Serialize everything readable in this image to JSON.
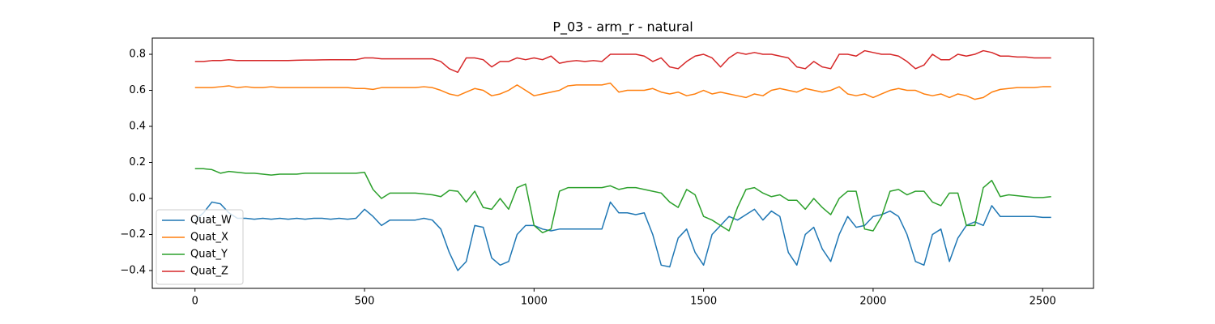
{
  "chart_data": {
    "type": "line",
    "title": "P_03 - arm_r - natural",
    "x": [
      0,
      25,
      50,
      75,
      100,
      125,
      150,
      175,
      200,
      225,
      250,
      275,
      300,
      325,
      350,
      375,
      400,
      425,
      450,
      475,
      500,
      525,
      550,
      575,
      600,
      625,
      650,
      675,
      700,
      725,
      750,
      775,
      800,
      825,
      850,
      875,
      900,
      925,
      950,
      975,
      1000,
      1025,
      1050,
      1075,
      1100,
      1125,
      1150,
      1175,
      1200,
      1225,
      1250,
      1275,
      1300,
      1325,
      1350,
      1375,
      1400,
      1425,
      1450,
      1475,
      1500,
      1525,
      1550,
      1575,
      1600,
      1625,
      1650,
      1675,
      1700,
      1725,
      1750,
      1775,
      1800,
      1825,
      1850,
      1875,
      1900,
      1925,
      1950,
      1975,
      2000,
      2025,
      2050,
      2075,
      2100,
      2125,
      2150,
      2175,
      2200,
      2225,
      2250,
      2275,
      2300,
      2325,
      2350,
      2375,
      2400,
      2425,
      2450,
      2475,
      2500,
      2525
    ],
    "series": [
      {
        "name": "Quat_W",
        "color": "#1f77b4",
        "values": [
          -0.12,
          -0.08,
          -0.02,
          -0.03,
          -0.08,
          -0.11,
          -0.11,
          -0.115,
          -0.11,
          -0.115,
          -0.11,
          -0.115,
          -0.11,
          -0.115,
          -0.11,
          -0.11,
          -0.115,
          -0.11,
          -0.115,
          -0.11,
          -0.06,
          -0.1,
          -0.15,
          -0.12,
          -0.12,
          -0.12,
          -0.12,
          -0.11,
          -0.12,
          -0.17,
          -0.3,
          -0.4,
          -0.35,
          -0.15,
          -0.16,
          -0.33,
          -0.37,
          -0.35,
          -0.2,
          -0.15,
          -0.15,
          -0.17,
          -0.18,
          -0.17,
          -0.17,
          -0.17,
          -0.17,
          -0.17,
          -0.17,
          -0.02,
          -0.08,
          -0.08,
          -0.09,
          -0.08,
          -0.2,
          -0.37,
          -0.38,
          -0.22,
          -0.17,
          -0.3,
          -0.37,
          -0.2,
          -0.15,
          -0.1,
          -0.12,
          -0.09,
          -0.06,
          -0.12,
          -0.07,
          -0.1,
          -0.3,
          -0.37,
          -0.2,
          -0.16,
          -0.28,
          -0.35,
          -0.2,
          -0.1,
          -0.16,
          -0.15,
          -0.1,
          -0.09,
          -0.07,
          -0.1,
          -0.2,
          -0.35,
          -0.37,
          -0.2,
          -0.17,
          -0.35,
          -0.22,
          -0.15,
          -0.13,
          -0.15,
          -0.04,
          -0.1,
          -0.1,
          -0.1,
          -0.1,
          -0.1,
          -0.105,
          -0.105
        ]
      },
      {
        "name": "Quat_X",
        "color": "#ff7f0e",
        "values": [
          0.615,
          0.615,
          0.615,
          0.62,
          0.625,
          0.615,
          0.62,
          0.615,
          0.615,
          0.62,
          0.615,
          0.615,
          0.615,
          0.615,
          0.615,
          0.615,
          0.615,
          0.615,
          0.615,
          0.61,
          0.61,
          0.605,
          0.615,
          0.615,
          0.615,
          0.615,
          0.615,
          0.62,
          0.615,
          0.6,
          0.58,
          0.57,
          0.59,
          0.61,
          0.6,
          0.57,
          0.58,
          0.6,
          0.63,
          0.6,
          0.57,
          0.58,
          0.59,
          0.6,
          0.625,
          0.63,
          0.63,
          0.63,
          0.63,
          0.64,
          0.59,
          0.6,
          0.6,
          0.6,
          0.61,
          0.59,
          0.58,
          0.59,
          0.57,
          0.58,
          0.6,
          0.58,
          0.59,
          0.58,
          0.57,
          0.56,
          0.58,
          0.57,
          0.6,
          0.61,
          0.6,
          0.59,
          0.61,
          0.6,
          0.59,
          0.6,
          0.62,
          0.58,
          0.57,
          0.58,
          0.56,
          0.58,
          0.6,
          0.61,
          0.6,
          0.6,
          0.58,
          0.57,
          0.58,
          0.56,
          0.58,
          0.57,
          0.55,
          0.56,
          0.59,
          0.605,
          0.61,
          0.615,
          0.615,
          0.615,
          0.62,
          0.62
        ]
      },
      {
        "name": "Quat_Y",
        "color": "#2ca02c",
        "values": [
          0.165,
          0.165,
          0.16,
          0.14,
          0.15,
          0.145,
          0.14,
          0.14,
          0.135,
          0.13,
          0.135,
          0.135,
          0.135,
          0.14,
          0.14,
          0.14,
          0.14,
          0.14,
          0.14,
          0.14,
          0.145,
          0.05,
          0.0,
          0.03,
          0.03,
          0.03,
          0.03,
          0.025,
          0.02,
          0.01,
          0.045,
          0.04,
          -0.02,
          0.04,
          -0.05,
          -0.06,
          0.0,
          -0.06,
          0.06,
          0.08,
          -0.15,
          -0.19,
          -0.17,
          0.04,
          0.06,
          0.06,
          0.06,
          0.06,
          0.06,
          0.07,
          0.05,
          0.06,
          0.06,
          0.05,
          0.04,
          0.03,
          -0.02,
          -0.05,
          0.05,
          0.02,
          -0.1,
          -0.12,
          -0.15,
          -0.18,
          -0.05,
          0.05,
          0.06,
          0.03,
          0.01,
          0.02,
          -0.01,
          -0.01,
          -0.06,
          0.0,
          -0.05,
          -0.09,
          0.0,
          0.04,
          0.04,
          -0.17,
          -0.18,
          -0.1,
          0.04,
          0.05,
          0.02,
          0.04,
          0.04,
          -0.02,
          -0.04,
          0.03,
          0.03,
          -0.15,
          -0.15,
          0.06,
          0.1,
          0.01,
          0.02,
          0.015,
          0.01,
          0.005,
          0.005,
          0.01
        ]
      },
      {
        "name": "Quat_Z",
        "color": "#d62728",
        "values": [
          0.76,
          0.76,
          0.765,
          0.765,
          0.77,
          0.765,
          0.765,
          0.765,
          0.765,
          0.765,
          0.765,
          0.765,
          0.767,
          0.768,
          0.768,
          0.769,
          0.77,
          0.77,
          0.77,
          0.77,
          0.78,
          0.78,
          0.775,
          0.775,
          0.775,
          0.775,
          0.775,
          0.775,
          0.775,
          0.76,
          0.72,
          0.7,
          0.78,
          0.78,
          0.77,
          0.73,
          0.76,
          0.76,
          0.78,
          0.77,
          0.78,
          0.77,
          0.79,
          0.75,
          0.76,
          0.765,
          0.76,
          0.765,
          0.76,
          0.8,
          0.8,
          0.8,
          0.8,
          0.79,
          0.76,
          0.78,
          0.73,
          0.72,
          0.76,
          0.79,
          0.8,
          0.78,
          0.73,
          0.78,
          0.81,
          0.8,
          0.81,
          0.8,
          0.8,
          0.79,
          0.78,
          0.73,
          0.72,
          0.76,
          0.73,
          0.72,
          0.8,
          0.8,
          0.79,
          0.82,
          0.81,
          0.8,
          0.8,
          0.79,
          0.76,
          0.72,
          0.74,
          0.8,
          0.77,
          0.77,
          0.8,
          0.79,
          0.8,
          0.82,
          0.81,
          0.79,
          0.79,
          0.785,
          0.785,
          0.78,
          0.78,
          0.78
        ]
      }
    ],
    "xlim": [
      -126,
      2650
    ],
    "ylim": [
      -0.499,
      0.89
    ],
    "xticks": [
      0,
      500,
      1000,
      1500,
      2000,
      2500
    ],
    "yticks": [
      {
        "value": -0.4,
        "label": "−0.4"
      },
      {
        "value": -0.2,
        "label": "−0.2"
      },
      {
        "value": 0.0,
        "label": "0.0"
      },
      0.2,
      0.4,
      0.6,
      0.8
    ],
    "grid": false,
    "legend": "lower left"
  }
}
